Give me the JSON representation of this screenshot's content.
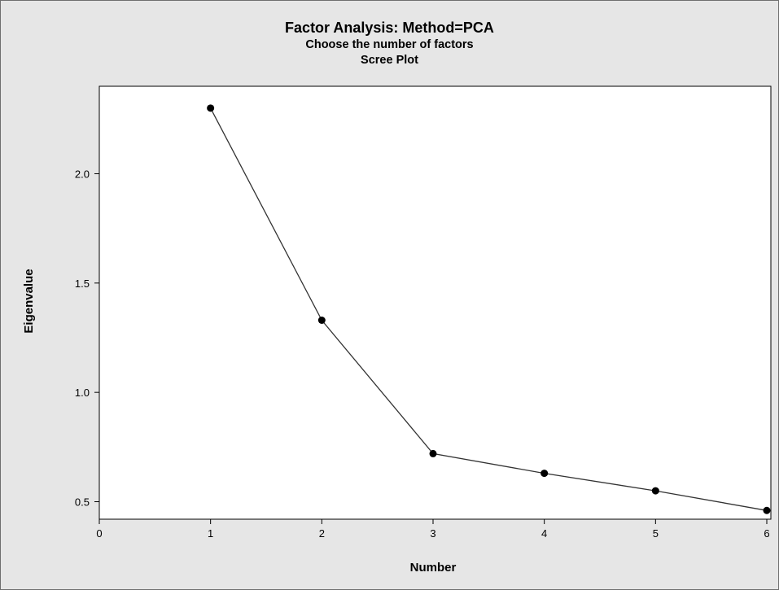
{
  "chart_data": {
    "type": "line",
    "title": "Factor Analysis: Method=PCA",
    "subtitle": "Choose the number of factors",
    "subtitle2": "Scree Plot",
    "xlabel": "Number",
    "ylabel": "Eigenvalue",
    "x": [
      1,
      2,
      3,
      4,
      5,
      6
    ],
    "y": [
      2.3,
      1.33,
      0.72,
      0.63,
      0.55,
      0.46
    ],
    "xlim": [
      0,
      6
    ],
    "ylim": [
      0.42,
      2.4
    ],
    "xticks": [
      0,
      1,
      2,
      3,
      4,
      5,
      6
    ],
    "yticks": [
      0.5,
      1.0,
      1.5,
      2.0
    ],
    "ytick_labels": [
      "0.5",
      "1.0",
      "1.5",
      "2.0"
    ],
    "grid": false,
    "colors": {
      "line": "#333333",
      "marker": "#000000",
      "plot_background": "#ffffff",
      "figure_background": "#e6e6e6"
    }
  }
}
